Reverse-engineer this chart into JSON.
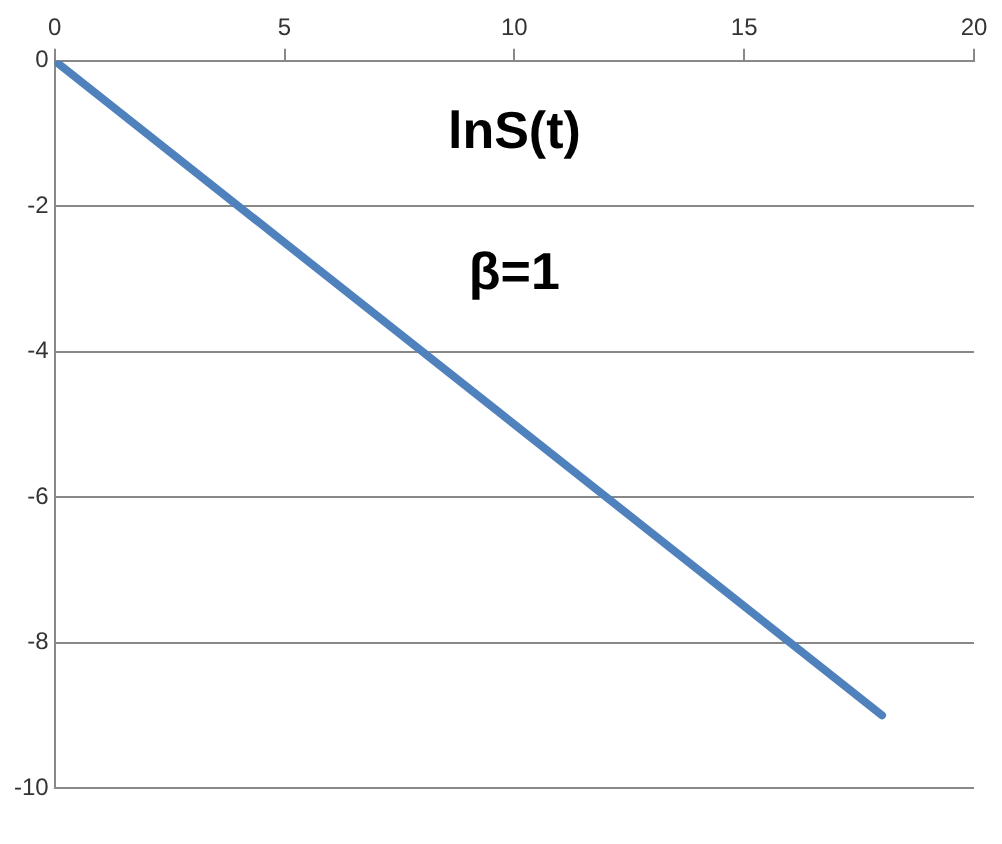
{
  "chart_data": {
    "type": "line",
    "title": "lnS(t)",
    "subtitle": "β=1",
    "x": [
      0,
      18
    ],
    "series": [
      {
        "color": "#4f81bd",
        "values": [
          0,
          -9
        ]
      }
    ],
    "xlim": [
      0,
      20
    ],
    "xticks": [
      0,
      5,
      10,
      15,
      20
    ],
    "ylim": [
      -10,
      0
    ],
    "yticks": [
      0,
      -2,
      -4,
      -6,
      -8,
      -10
    ],
    "grid": "y",
    "legend": false,
    "marker": "none"
  }
}
